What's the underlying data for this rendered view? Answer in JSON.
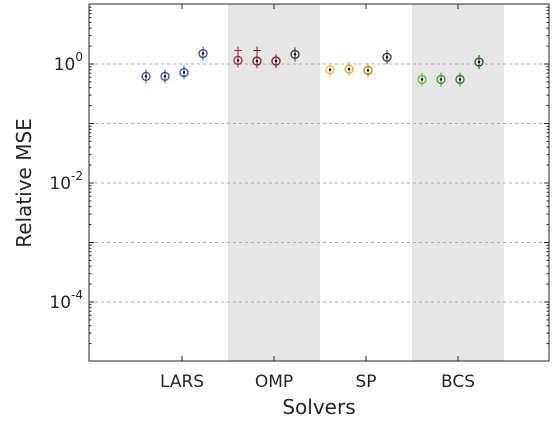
{
  "chart_data": {
    "type": "box",
    "title": "",
    "xlabel": "Solvers",
    "ylabel": "Relative MSE",
    "yscale": "log",
    "ylim": [
      1e-06,
      10
    ],
    "categories": [
      "LARS",
      "OMP",
      "SP",
      "BCS"
    ],
    "shaded_categories": [
      "OMP",
      "BCS"
    ],
    "shade_color": "#e6e6e6",
    "grid": "y-major-dashed",
    "yticks": [
      {
        "value": 1,
        "base": "10",
        "exp": "0"
      },
      {
        "value": 0.01,
        "base": "10",
        "exp": "-2"
      },
      {
        "value": 0.0001,
        "base": "10",
        "exp": "-4"
      }
    ],
    "groups": [
      {
        "category": "LARS",
        "boxes": [
          {
            "median": 0.62,
            "color": "#2c4a9a"
          },
          {
            "median": 0.62,
            "color": "#2c4a9a"
          },
          {
            "median": 0.72,
            "color": "#2c4a9a"
          },
          {
            "median": 1.5,
            "color": "#2c4a9a"
          }
        ]
      },
      {
        "category": "OMP",
        "boxes": [
          {
            "median": 1.15,
            "color": "#b22222",
            "outlier": 1.7
          },
          {
            "median": 1.12,
            "color": "#8b1a1a",
            "outlier": 1.7
          },
          {
            "median": 1.12,
            "color": "#8b1a1a"
          },
          {
            "median": 1.45,
            "color": "#333333"
          }
        ]
      },
      {
        "category": "SP",
        "boxes": [
          {
            "median": 0.8,
            "color": "#e6c229"
          },
          {
            "median": 0.82,
            "color": "#e6a817"
          },
          {
            "median": 0.78,
            "color": "#b8860b"
          },
          {
            "median": 1.3,
            "color": "#333333"
          }
        ]
      },
      {
        "category": "BCS",
        "boxes": [
          {
            "median": 0.55,
            "color": "#66c23a"
          },
          {
            "median": 0.55,
            "color": "#3a9a2a"
          },
          {
            "median": 0.55,
            "color": "#2e7d32"
          },
          {
            "median": 1.08,
            "color": "#1e5a1e"
          }
        ]
      }
    ]
  }
}
